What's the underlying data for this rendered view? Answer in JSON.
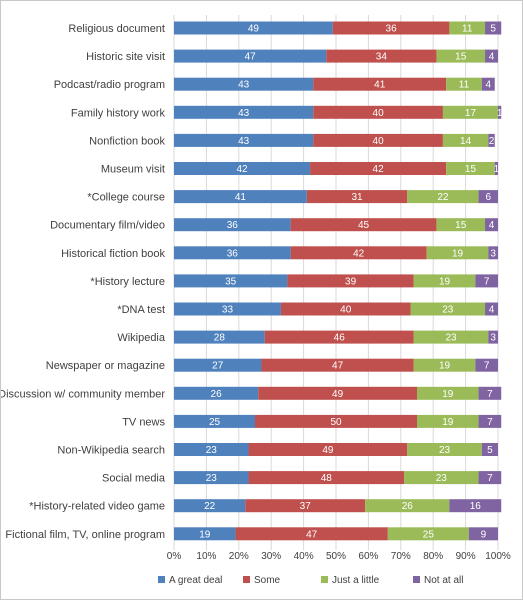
{
  "chart_data": {
    "type": "bar",
    "orientation": "horizontal",
    "stacked": "percent",
    "categories": [
      "Religious document",
      "Historic site visit",
      "Podcast/radio program",
      "Family history work",
      "Nonfiction book",
      "Museum visit",
      "*College course",
      "Documentary film/video",
      "Historical fiction book",
      "*History lecture",
      "*DNA test",
      "Wikipedia",
      "Newspaper or magazine",
      "Discussion w/ community member",
      "TV news",
      "Non-Wikipedia search",
      "Social media",
      "*History-related video game",
      "Fictional film, TV, online program"
    ],
    "series": [
      {
        "name": "A great deal",
        "color": "#4f81bd",
        "values": [
          49,
          47,
          43,
          43,
          43,
          42,
          41,
          36,
          36,
          35,
          33,
          28,
          27,
          26,
          25,
          23,
          23,
          22,
          19
        ]
      },
      {
        "name": "Some",
        "color": "#c0504d",
        "values": [
          36,
          34,
          41,
          40,
          40,
          42,
          31,
          45,
          42,
          39,
          40,
          46,
          47,
          49,
          50,
          49,
          48,
          37,
          47
        ]
      },
      {
        "name": "Just a little",
        "color": "#9bbb59",
        "values": [
          11,
          15,
          11,
          17,
          14,
          15,
          22,
          15,
          19,
          19,
          23,
          23,
          19,
          19,
          19,
          23,
          23,
          26,
          25
        ]
      },
      {
        "name": "Not at all",
        "color": "#8064a2",
        "values": [
          5,
          4,
          4,
          1,
          2,
          1,
          6,
          4,
          3,
          7,
          4,
          3,
          7,
          7,
          7,
          5,
          7,
          16,
          9
        ]
      }
    ],
    "xticks": [
      "0%",
      "10%",
      "20%",
      "30%",
      "40%",
      "50%",
      "60%",
      "70%",
      "80%",
      "90%",
      "100%"
    ],
    "xlim": [
      0,
      100
    ],
    "grid": true,
    "legend_position": "bottom"
  }
}
